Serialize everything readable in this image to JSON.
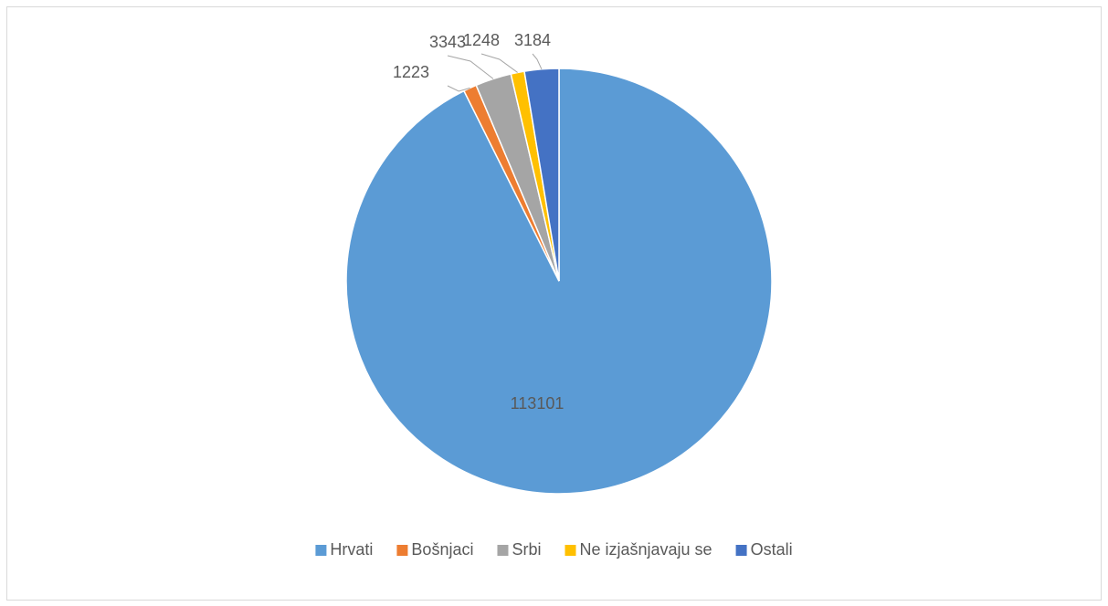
{
  "chart_data": {
    "type": "pie",
    "categories": [
      "Hrvati",
      "Bošnjaci",
      "Srbi",
      "Ne izjašnjavaju se",
      "Ostali"
    ],
    "values": [
      113101,
      1223,
      3343,
      1248,
      3184
    ],
    "colors": [
      "#5b9bd5",
      "#ed7d31",
      "#a5a5a5",
      "#ffc000",
      "#4472c4"
    ],
    "legend": "bottom"
  }
}
